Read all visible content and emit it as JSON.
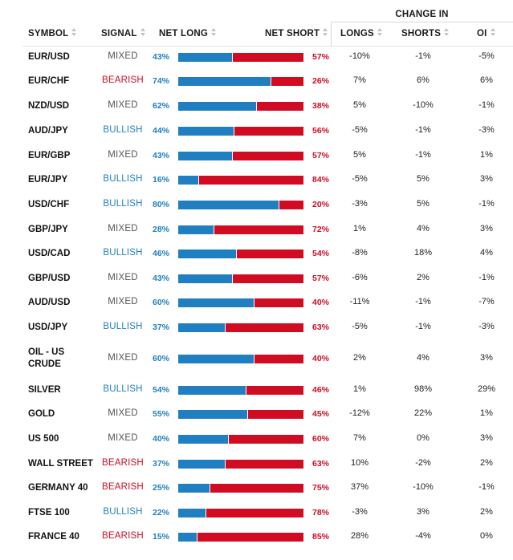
{
  "header": {
    "change_in": "CHANGE IN",
    "symbol": "SYMBOL",
    "signal": "SIGNAL",
    "net_long": "NET LONG",
    "net_short": "NET SHORT",
    "longs": "LONGS",
    "shorts": "SHORTS",
    "oi": "OI"
  },
  "colors": {
    "long": "#1f7fc0",
    "short": "#d10b22",
    "mixed": "#555555"
  },
  "rows": [
    {
      "symbol": "EUR/USD",
      "signal": "MIXED",
      "long": "43%",
      "long_value": 43,
      "short": "57%",
      "longs": "-10%",
      "shorts": "-1%",
      "oi": "-5%"
    },
    {
      "symbol": "EUR/CHF",
      "signal": "BEARISH",
      "long": "74%",
      "long_value": 74,
      "short": "26%",
      "longs": "7%",
      "shorts": "6%",
      "oi": "6%"
    },
    {
      "symbol": "NZD/USD",
      "signal": "MIXED",
      "long": "62%",
      "long_value": 62,
      "short": "38%",
      "longs": "5%",
      "shorts": "-10%",
      "oi": "-1%"
    },
    {
      "symbol": "AUD/JPY",
      "signal": "BULLISH",
      "long": "44%",
      "long_value": 44,
      "short": "56%",
      "longs": "-5%",
      "shorts": "-1%",
      "oi": "-3%"
    },
    {
      "symbol": "EUR/GBP",
      "signal": "MIXED",
      "long": "43%",
      "long_value": 43,
      "short": "57%",
      "longs": "5%",
      "shorts": "-1%",
      "oi": "1%"
    },
    {
      "symbol": "EUR/JPY",
      "signal": "BULLISH",
      "long": "16%",
      "long_value": 16,
      "short": "84%",
      "longs": "-5%",
      "shorts": "5%",
      "oi": "3%"
    },
    {
      "symbol": "USD/CHF",
      "signal": "BULLISH",
      "long": "80%",
      "long_value": 80,
      "short": "20%",
      "longs": "-3%",
      "shorts": "5%",
      "oi": "-1%"
    },
    {
      "symbol": "GBP/JPY",
      "signal": "MIXED",
      "long": "28%",
      "long_value": 28,
      "short": "72%",
      "longs": "1%",
      "shorts": "4%",
      "oi": "3%"
    },
    {
      "symbol": "USD/CAD",
      "signal": "BULLISH",
      "long": "46%",
      "long_value": 46,
      "short": "54%",
      "longs": "-8%",
      "shorts": "18%",
      "oi": "4%"
    },
    {
      "symbol": "GBP/USD",
      "signal": "MIXED",
      "long": "43%",
      "long_value": 43,
      "short": "57%",
      "longs": "-6%",
      "shorts": "2%",
      "oi": "-1%"
    },
    {
      "symbol": "AUD/USD",
      "signal": "MIXED",
      "long": "60%",
      "long_value": 60,
      "short": "40%",
      "longs": "-11%",
      "shorts": "-1%",
      "oi": "-7%"
    },
    {
      "symbol": "USD/JPY",
      "signal": "BULLISH",
      "long": "37%",
      "long_value": 37,
      "short": "63%",
      "longs": "-5%",
      "shorts": "-1%",
      "oi": "-3%"
    },
    {
      "symbol_lines": [
        "OIL - US",
        "CRUDE"
      ],
      "signal": "MIXED",
      "long": "60%",
      "long_value": 60,
      "short": "40%",
      "longs": "2%",
      "shorts": "4%",
      "oi": "3%"
    },
    {
      "symbol": "SILVER",
      "signal": "BULLISH",
      "long": "54%",
      "long_value": 54,
      "short": "46%",
      "longs": "1%",
      "shorts": "98%",
      "oi": "29%"
    },
    {
      "symbol": "GOLD",
      "signal": "MIXED",
      "long": "55%",
      "long_value": 55,
      "short": "45%",
      "longs": "-12%",
      "shorts": "22%",
      "oi": "1%"
    },
    {
      "symbol": "US 500",
      "signal": "MIXED",
      "long": "40%",
      "long_value": 40,
      "short": "60%",
      "longs": "7%",
      "shorts": "0%",
      "oi": "3%"
    },
    {
      "symbol": "WALL STREET",
      "signal": "BEARISH",
      "long": "37%",
      "long_value": 37,
      "short": "63%",
      "longs": "10%",
      "shorts": "-2%",
      "oi": "2%"
    },
    {
      "symbol": "GERMANY 40",
      "signal": "BEARISH",
      "long": "25%",
      "long_value": 25,
      "short": "75%",
      "longs": "37%",
      "shorts": "-10%",
      "oi": "-1%"
    },
    {
      "symbol": "FTSE 100",
      "signal": "BULLISH",
      "long": "22%",
      "long_value": 22,
      "short": "78%",
      "longs": "-3%",
      "shorts": "3%",
      "oi": "2%"
    },
    {
      "symbol": "FRANCE 40",
      "signal": "BEARISH",
      "long": "15%",
      "long_value": 15,
      "short": "85%",
      "longs": "28%",
      "shorts": "-4%",
      "oi": "0%"
    }
  ]
}
